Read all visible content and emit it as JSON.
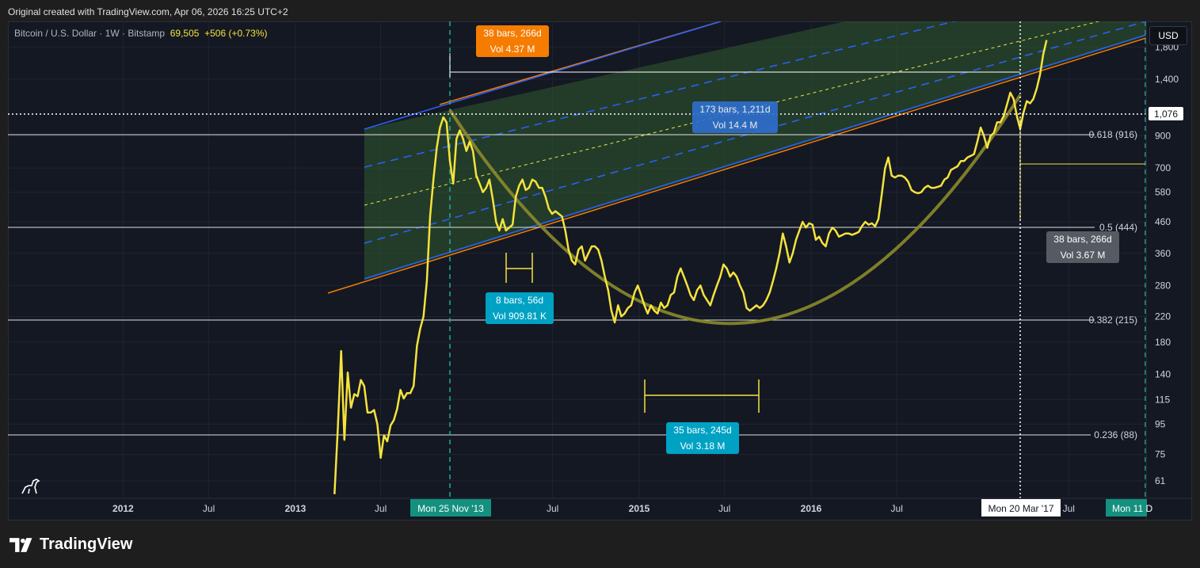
{
  "header": {
    "created_text": "Original created with TradingView.com, Apr 06, 2026 16:25 UTC+2"
  },
  "legend": {
    "symbol": "Bitcoin / U.S. Dollar · 1W · Bitstamp",
    "price": "69,505",
    "change": "+506 (+0.73%)"
  },
  "currency_button": "USD",
  "brand": "TradingView",
  "colors": {
    "price_line": "#f5e33c",
    "channel_fill": "#2e5a2e",
    "blue": "#2962ff",
    "orange": "#f57c00",
    "teal": "#26a69a",
    "cyan_tag": "#00a2c4"
  },
  "chart_data": {
    "type": "line",
    "scale": "log",
    "ylim": [
      55,
      1900
    ],
    "x_ticks": [
      "2012",
      "Jul",
      "2013",
      "Jul",
      "Jul",
      "2015",
      "Jul",
      "2016",
      "Jul",
      "Jul"
    ],
    "y_ticks": [
      "1,800",
      "1,400",
      "900",
      "700",
      "580",
      "460",
      "360",
      "280",
      "220",
      "180",
      "140",
      "115",
      "95",
      "75",
      "61"
    ],
    "current_price_label": "1,076",
    "fib_levels": [
      {
        "label": "0.618 (916)",
        "value": 916
      },
      {
        "label": "0.5 (444)",
        "value": 444
      },
      {
        "label": "0.382 (215)",
        "value": 215
      },
      {
        "label": "0.236 (88)",
        "value": 88
      }
    ],
    "date_markers": [
      {
        "label": "Mon 25 Nov '13",
        "date": "2013-11-25"
      },
      {
        "label": "Mon 20 Mar '17",
        "date": "2017-03-20"
      },
      {
        "label": "Mon 11 D",
        "date": "2017-12-11"
      }
    ],
    "measure_tags": [
      {
        "line1": "38 bars, 266d",
        "line2": "Vol 4.37 M"
      },
      {
        "line1": "173 bars, 1,211d",
        "line2": "Vol 14.4 M"
      },
      {
        "line1": "8 bars, 56d",
        "line2": "Vol 909.81 K"
      },
      {
        "line1": "35 bars, 245d",
        "line2": "Vol 3.18 M"
      },
      {
        "line1": "38 bars, 266d",
        "line2": "Vol 3.67 M"
      }
    ],
    "series": [
      {
        "points": [
          [
            "2013-03-25",
            55
          ],
          [
            "2013-04-01",
            92
          ],
          [
            "2013-04-08",
            168
          ],
          [
            "2013-04-15",
            84
          ],
          [
            "2013-04-22",
            142
          ],
          [
            "2013-04-29",
            108
          ],
          [
            "2013-05-06",
            120
          ],
          [
            "2013-05-13",
            118
          ],
          [
            "2013-05-20",
            134
          ],
          [
            "2013-05-27",
            128
          ],
          [
            "2013-06-03",
            104
          ],
          [
            "2013-06-10",
            104
          ],
          [
            "2013-06-17",
            106
          ],
          [
            "2013-06-24",
            95
          ],
          [
            "2013-07-01",
            73
          ],
          [
            "2013-07-08",
            87
          ],
          [
            "2013-07-15",
            83
          ],
          [
            "2013-07-22",
            94
          ],
          [
            "2013-07-29",
            98
          ],
          [
            "2013-08-05",
            107
          ],
          [
            "2013-08-12",
            124
          ],
          [
            "2013-08-19",
            116
          ],
          [
            "2013-08-26",
            121
          ],
          [
            "2013-09-02",
            121
          ],
          [
            "2013-09-09",
            128
          ],
          [
            "2013-09-16",
            175
          ],
          [
            "2013-09-23",
            200
          ],
          [
            "2013-09-30",
            220
          ],
          [
            "2013-10-07",
            290
          ],
          [
            "2013-10-14",
            480
          ],
          [
            "2013-10-21",
            640
          ],
          [
            "2013-10-28",
            820
          ],
          [
            "2013-11-04",
            960
          ],
          [
            "2013-11-11",
            1040
          ],
          [
            "2013-11-18",
            1000
          ],
          [
            "2013-11-25",
            740
          ],
          [
            "2013-12-02",
            620
          ],
          [
            "2013-12-09",
            880
          ],
          [
            "2013-12-16",
            940
          ],
          [
            "2013-12-23",
            880
          ],
          [
            "2013-12-30",
            800
          ],
          [
            "2014-01-06",
            860
          ],
          [
            "2014-01-13",
            800
          ],
          [
            "2014-01-20",
            660
          ],
          [
            "2014-01-27",
            620
          ],
          [
            "2014-02-03",
            580
          ],
          [
            "2014-02-10",
            600
          ],
          [
            "2014-02-17",
            640
          ],
          [
            "2014-02-24",
            550
          ],
          [
            "2014-03-03",
            460
          ],
          [
            "2014-03-10",
            430
          ],
          [
            "2014-03-17",
            470
          ],
          [
            "2014-03-24",
            430
          ],
          [
            "2014-03-31",
            440
          ],
          [
            "2014-04-07",
            450
          ],
          [
            "2014-04-14",
            560
          ],
          [
            "2014-04-21",
            610
          ],
          [
            "2014-04-28",
            640
          ],
          [
            "2014-05-05",
            590
          ],
          [
            "2014-05-12",
            600
          ],
          [
            "2014-05-19",
            640
          ],
          [
            "2014-05-26",
            630
          ],
          [
            "2014-06-02",
            600
          ],
          [
            "2014-06-09",
            600
          ],
          [
            "2014-06-16",
            560
          ],
          [
            "2014-06-23",
            510
          ],
          [
            "2014-06-30",
            490
          ],
          [
            "2014-07-07",
            500
          ],
          [
            "2014-07-14",
            490
          ],
          [
            "2014-07-21",
            480
          ],
          [
            "2014-07-28",
            430
          ],
          [
            "2014-08-04",
            370
          ],
          [
            "2014-08-11",
            340
          ],
          [
            "2014-08-18",
            330
          ],
          [
            "2014-08-25",
            370
          ],
          [
            "2014-09-01",
            380
          ],
          [
            "2014-09-08",
            340
          ],
          [
            "2014-09-15",
            360
          ],
          [
            "2014-09-22",
            380
          ],
          [
            "2014-09-29",
            380
          ],
          [
            "2014-10-06",
            370
          ],
          [
            "2014-10-13",
            340
          ],
          [
            "2014-10-20",
            300
          ],
          [
            "2014-10-27",
            270
          ],
          [
            "2014-11-03",
            230
          ],
          [
            "2014-11-10",
            210
          ],
          [
            "2014-11-17",
            240
          ],
          [
            "2014-11-24",
            220
          ],
          [
            "2014-12-01",
            225
          ],
          [
            "2014-12-08",
            235
          ],
          [
            "2014-12-15",
            240
          ],
          [
            "2014-12-22",
            265
          ],
          [
            "2014-12-29",
            280
          ],
          [
            "2015-01-05",
            260
          ],
          [
            "2015-01-12",
            240
          ],
          [
            "2015-01-19",
            225
          ],
          [
            "2015-01-26",
            240
          ],
          [
            "2015-02-02",
            230
          ],
          [
            "2015-02-09",
            225
          ],
          [
            "2015-02-16",
            245
          ],
          [
            "2015-02-23",
            235
          ],
          [
            "2015-03-02",
            240
          ],
          [
            "2015-03-09",
            260
          ],
          [
            "2015-03-16",
            265
          ],
          [
            "2015-03-23",
            300
          ],
          [
            "2015-03-30",
            320
          ],
          [
            "2015-04-06",
            300
          ],
          [
            "2015-04-13",
            280
          ],
          [
            "2015-04-20",
            260
          ],
          [
            "2015-04-27",
            250
          ],
          [
            "2015-05-04",
            270
          ],
          [
            "2015-05-11",
            280
          ],
          [
            "2015-05-18",
            260
          ],
          [
            "2015-05-25",
            250
          ],
          [
            "2015-06-01",
            240
          ],
          [
            "2015-06-08",
            260
          ],
          [
            "2015-06-15",
            280
          ],
          [
            "2015-06-22",
            300
          ],
          [
            "2015-06-29",
            330
          ],
          [
            "2015-07-06",
            320
          ],
          [
            "2015-07-13",
            300
          ],
          [
            "2015-07-20",
            310
          ],
          [
            "2015-07-27",
            300
          ],
          [
            "2015-08-03",
            280
          ],
          [
            "2015-08-10",
            265
          ],
          [
            "2015-08-17",
            235
          ],
          [
            "2015-08-24",
            230
          ],
          [
            "2015-08-31",
            235
          ],
          [
            "2015-09-07",
            240
          ],
          [
            "2015-09-14",
            235
          ],
          [
            "2015-09-21",
            240
          ],
          [
            "2015-09-28",
            250
          ],
          [
            "2015-10-05",
            265
          ],
          [
            "2015-10-12",
            290
          ],
          [
            "2015-10-19",
            320
          ],
          [
            "2015-10-26",
            360
          ],
          [
            "2015-11-02",
            420
          ],
          [
            "2015-11-09",
            380
          ],
          [
            "2015-11-16",
            335
          ],
          [
            "2015-11-23",
            360
          ],
          [
            "2015-11-30",
            400
          ],
          [
            "2015-12-07",
            430
          ],
          [
            "2015-12-14",
            460
          ],
          [
            "2015-12-21",
            440
          ],
          [
            "2015-12-28",
            455
          ],
          [
            "2016-01-04",
            450
          ],
          [
            "2016-01-11",
            400
          ],
          [
            "2016-01-18",
            410
          ],
          [
            "2016-01-25",
            390
          ],
          [
            "2016-02-01",
            380
          ],
          [
            "2016-02-08",
            420
          ],
          [
            "2016-02-15",
            440
          ],
          [
            "2016-02-22",
            430
          ],
          [
            "2016-02-29",
            410
          ],
          [
            "2016-03-07",
            415
          ],
          [
            "2016-03-14",
            420
          ],
          [
            "2016-03-21",
            420
          ],
          [
            "2016-03-28",
            416
          ],
          [
            "2016-04-04",
            420
          ],
          [
            "2016-04-11",
            425
          ],
          [
            "2016-04-18",
            445
          ],
          [
            "2016-04-25",
            460
          ],
          [
            "2016-05-02",
            450
          ],
          [
            "2016-05-09",
            455
          ],
          [
            "2016-05-16",
            445
          ],
          [
            "2016-05-23",
            470
          ],
          [
            "2016-05-30",
            570
          ],
          [
            "2016-06-06",
            700
          ],
          [
            "2016-06-13",
            760
          ],
          [
            "2016-06-20",
            660
          ],
          [
            "2016-06-27",
            650
          ],
          [
            "2016-07-04",
            660
          ],
          [
            "2016-07-11",
            660
          ],
          [
            "2016-07-18",
            650
          ],
          [
            "2016-07-25",
            630
          ],
          [
            "2016-08-01",
            590
          ],
          [
            "2016-08-08",
            580
          ],
          [
            "2016-08-15",
            575
          ],
          [
            "2016-08-22",
            580
          ],
          [
            "2016-08-29",
            600
          ],
          [
            "2016-09-05",
            610
          ],
          [
            "2016-09-12",
            600
          ],
          [
            "2016-09-19",
            600
          ],
          [
            "2016-09-26",
            605
          ],
          [
            "2016-10-03",
            610
          ],
          [
            "2016-10-10",
            640
          ],
          [
            "2016-10-17",
            650
          ],
          [
            "2016-10-24",
            690
          ],
          [
            "2016-10-31",
            700
          ],
          [
            "2016-11-07",
            710
          ],
          [
            "2016-11-14",
            740
          ],
          [
            "2016-11-21",
            740
          ],
          [
            "2016-11-28",
            760
          ],
          [
            "2016-12-05",
            770
          ],
          [
            "2016-12-12",
            780
          ],
          [
            "2016-12-19",
            860
          ],
          [
            "2016-12-26",
            960
          ],
          [
            "2017-01-02",
            900
          ],
          [
            "2017-01-09",
            820
          ],
          [
            "2017-01-16",
            900
          ],
          [
            "2017-01-23",
            920
          ],
          [
            "2017-01-30",
            1000
          ],
          [
            "2017-02-06",
            1000
          ],
          [
            "2017-02-13",
            1050
          ],
          [
            "2017-02-20",
            1150
          ],
          [
            "2017-02-27",
            1260
          ],
          [
            "2017-03-06",
            1200
          ],
          [
            "2017-03-13",
            1050
          ],
          [
            "2017-03-20",
            950
          ],
          [
            "2017-03-27",
            1080
          ],
          [
            "2017-04-03",
            1180
          ],
          [
            "2017-04-10",
            1160
          ],
          [
            "2017-04-17",
            1200
          ],
          [
            "2017-04-24",
            1300
          ],
          [
            "2017-05-01",
            1450
          ],
          [
            "2017-05-08",
            1700
          ],
          [
            "2017-05-15",
            1900
          ]
        ]
      }
    ]
  }
}
